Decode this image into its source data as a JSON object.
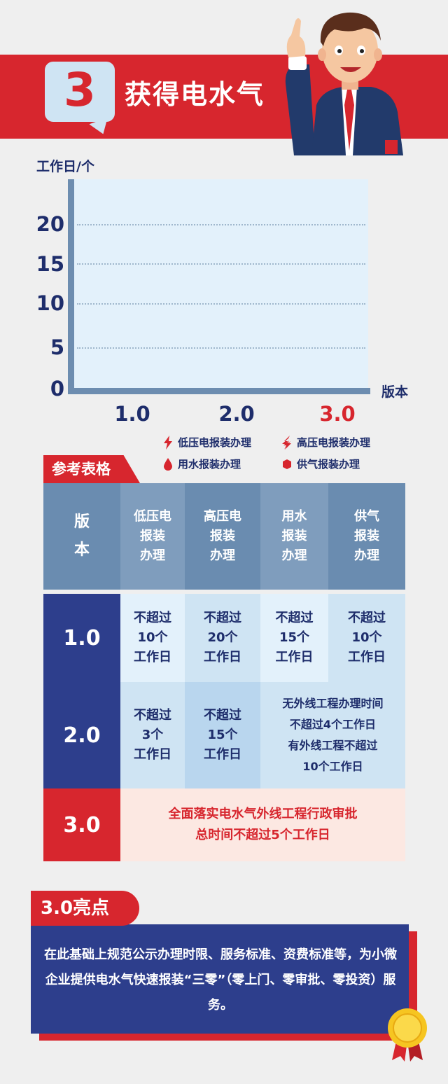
{
  "header": {
    "number": "3",
    "title": "获得电水气"
  },
  "chart_data": {
    "type": "bar",
    "ylabel": "工作日/个",
    "xlabel": "版本",
    "categories": [
      "1.0",
      "2.0",
      "3.0"
    ],
    "yticks": [
      "20",
      "15",
      "10",
      "5",
      "0"
    ],
    "ylim": [
      0,
      25
    ],
    "grid": true,
    "series": [],
    "legend": [
      "低压电报装办理",
      "高压电报装办理",
      "用水报装办理",
      "供气报装办理"
    ]
  },
  "reference_label": "参考表格",
  "table": {
    "headers": [
      "版\n本",
      "低压电\n报装\n办理",
      "高压电\n报装\n办理",
      "用水\n报装\n办理",
      "供气\n报装\n办理"
    ],
    "rows": [
      {
        "version": "1.0",
        "cells": [
          "不超过\n10个\n工作日",
          "不超过\n20个\n工作日",
          "不超过\n15个\n工作日",
          "不超过\n10个\n工作日"
        ]
      },
      {
        "version": "2.0",
        "cells": [
          "不超过\n3个\n工作日",
          "不超过\n15个\n工作日"
        ],
        "merged": "无外线工程办理时间\n不超过4个工作日\n有外线工程不超过\n10个工作日"
      },
      {
        "version": "3.0",
        "merged": "全面落实电水气外线工程行政审批\n总时间不超过5个工作日"
      }
    ]
  },
  "highlight": {
    "label": "3.0亮点",
    "text": "在此基础上规范公示办理时限、服务标准、资费标准等，为小微企业提供电水气快速报装“三零”（零上门、零审批、零投资）服务。"
  },
  "colors": {
    "red": "#d7262e",
    "navy": "#2d3e8c",
    "axis": "#6d8db0"
  }
}
